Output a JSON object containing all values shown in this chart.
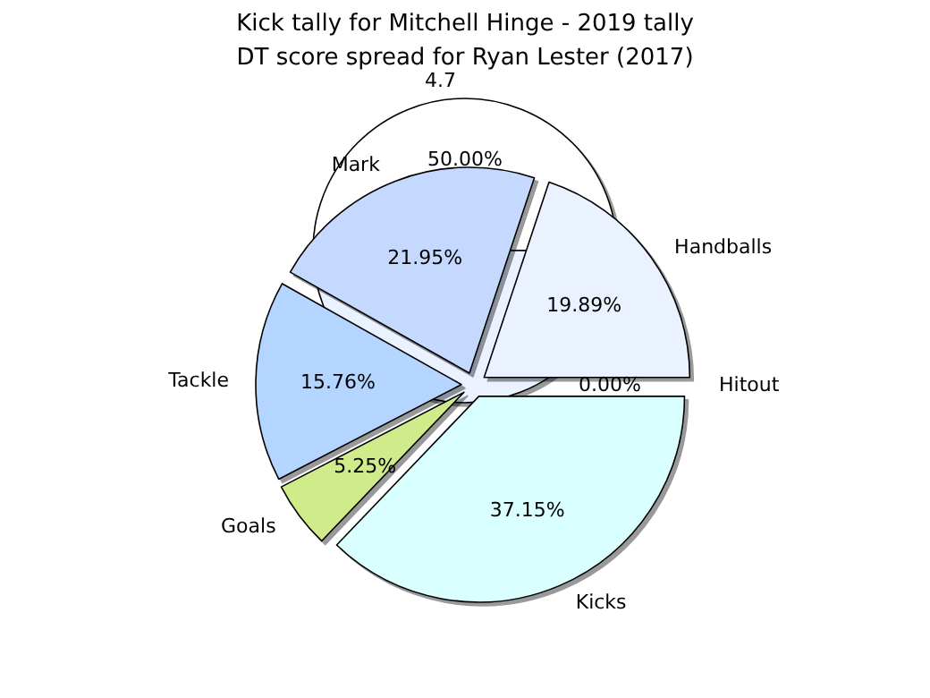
{
  "chart_data": [
    {
      "type": "pie",
      "title": "Kick tally for Mitchell Hinge - 2019 tally",
      "categories": [
        "4.7",
        null
      ],
      "values": [
        50,
        50
      ],
      "value_labels": [
        "50.00%",
        null
      ],
      "colors": [
        "#ffffff",
        "#eaf1ff"
      ]
    },
    {
      "type": "pie",
      "title": "DT score spread for Ryan Lester (2017)",
      "categories": [
        "Hitout",
        "Handballs",
        "Mark",
        "Tackle",
        "Goals",
        "Kicks"
      ],
      "values": [
        0,
        19.89,
        21.95,
        15.76,
        5.25,
        37.15
      ],
      "value_labels": [
        "0.00%",
        "19.89%",
        "21.95%",
        "15.76%",
        "5.25%",
        "37.15%"
      ],
      "colors": [
        "#eaf1ff",
        "#eaf1ff",
        "#c5d9ff",
        "#b3d5ff",
        "#cfeb8a",
        "#d9ffff"
      ]
    }
  ]
}
